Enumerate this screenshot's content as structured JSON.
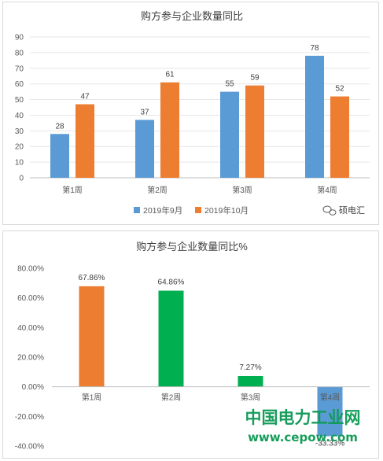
{
  "chart_data": [
    {
      "type": "bar",
      "title": "购方参与企业数量同比",
      "categories": [
        "第1周",
        "第2周",
        "第3周",
        "第4周"
      ],
      "series": [
        {
          "name": "2019年9月",
          "color": "#5b9bd5",
          "values": [
            28,
            37,
            55,
            78
          ]
        },
        {
          "name": "2019年10月",
          "color": "#ed7d31",
          "values": [
            47,
            61,
            59,
            52
          ]
        }
      ],
      "ylim": [
        0,
        90
      ],
      "yticks": [
        "0",
        "10",
        "20",
        "30",
        "40",
        "50",
        "60",
        "70",
        "80",
        "90"
      ],
      "grid": true,
      "legend": "bottom"
    },
    {
      "type": "bar",
      "title": "购方参与企业数量同比%",
      "categories": [
        "第1周",
        "第2周",
        "第3周",
        "第4周"
      ],
      "values": [
        67.86,
        64.86,
        7.27,
        -33.33
      ],
      "data_labels": [
        "67.86%",
        "64.86%",
        "7.27%",
        "-33.33%"
      ],
      "colors": [
        "#ed7d31",
        "#00b050",
        "#00b050",
        "#5b9bd5"
      ],
      "ylim": [
        -40,
        80
      ],
      "yticks": [
        "-40.00%",
        "-20.00%",
        "0.00%",
        "20.00%",
        "40.00%",
        "60.00%",
        "80.00%"
      ],
      "grid": false
    }
  ],
  "badge": {
    "text": "硕电汇",
    "icon": "wechat-icon"
  },
  "watermark": {
    "name": "中国电力工业网",
    "url": "www.cepow.com"
  }
}
